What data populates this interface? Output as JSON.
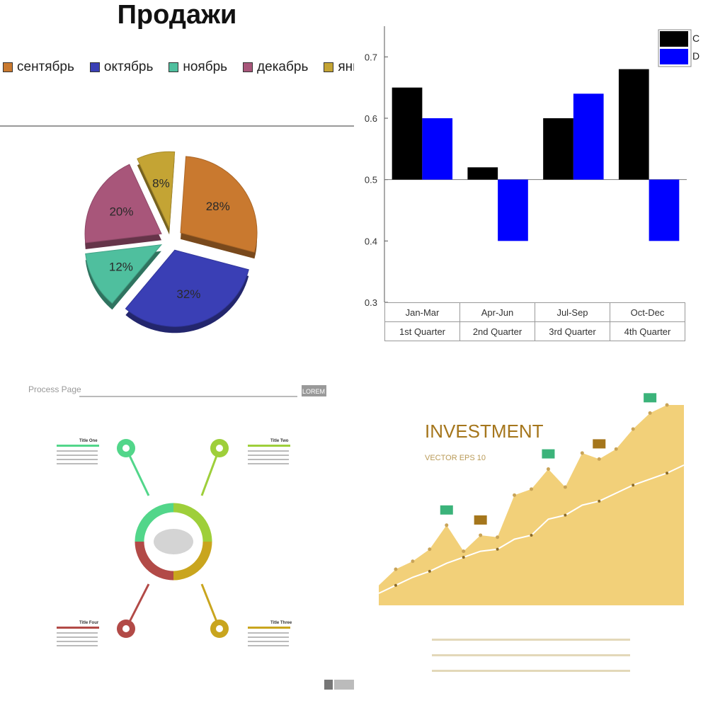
{
  "chart_data": [
    {
      "type": "pie",
      "title": "Продажи",
      "labels": [
        "сентябрь",
        "октябрь",
        "ноябрь",
        "декабрь",
        "январь"
      ],
      "values": [
        28,
        32,
        12,
        20,
        8
      ],
      "value_labels": [
        "28%",
        "32%",
        "12%",
        "20%",
        "8%"
      ],
      "colors": [
        "#c9792f",
        "#3a3fb5",
        "#4fbf9e",
        "#a8567a",
        "#c4a434"
      ],
      "legend_position": "top"
    },
    {
      "type": "bar",
      "categories": [
        "Jan-Mar",
        "Apr-Jun",
        "Jul-Sep",
        "Oct-Dec"
      ],
      "category_sublabels": [
        "1st Quarter",
        "2nd Quarter",
        "3rd Quarter",
        "4th Quarter"
      ],
      "series": [
        {
          "name": "C",
          "values": [
            0.65,
            0.52,
            0.6,
            0.68
          ],
          "color": "#000000"
        },
        {
          "name": "D",
          "values": [
            0.6,
            0.4,
            0.64,
            0.4
          ],
          "color": "#0000ff"
        }
      ],
      "baseline": 0.5,
      "ylim": [
        0.3,
        0.75
      ],
      "yticks": [
        "0.3",
        "0.4",
        "0.5",
        "0.6",
        "0.7"
      ],
      "legend_position": "top-right"
    },
    {
      "type": "other",
      "title": "Process Page",
      "button_label": "LOREM",
      "items": [
        {
          "title": "Title One",
          "color": "#52d68a",
          "icon": "paw-icon"
        },
        {
          "title": "Title Two",
          "color": "#9ecf3a",
          "icon": "chart-icon"
        },
        {
          "title": "Title Three",
          "color": "#c9a51e",
          "icon": "gear-icon"
        },
        {
          "title": "Title Four",
          "color": "#b24a47",
          "icon": "rocket-icon"
        }
      ],
      "center_image": "world-map-icon"
    },
    {
      "type": "area",
      "title": "INVESTMENT",
      "subtitle": "VECTOR EPS 10",
      "x": [
        1,
        2,
        3,
        4,
        5,
        6,
        7,
        8,
        9,
        10,
        11,
        12,
        13,
        14,
        15,
        16,
        17,
        18,
        19
      ],
      "values": [
        10,
        18,
        22,
        28,
        40,
        27,
        35,
        34,
        55,
        58,
        68,
        59,
        76,
        73,
        78,
        88,
        96,
        100,
        100
      ],
      "line_values": [
        6,
        10,
        14,
        17,
        21,
        24,
        27,
        28,
        33,
        35,
        43,
        45,
        50,
        52,
        56,
        60,
        63,
        66,
        70
      ],
      "colors": {
        "area": "#f2d079",
        "line": "#ffffff",
        "accent": "#a5761c"
      }
    }
  ]
}
